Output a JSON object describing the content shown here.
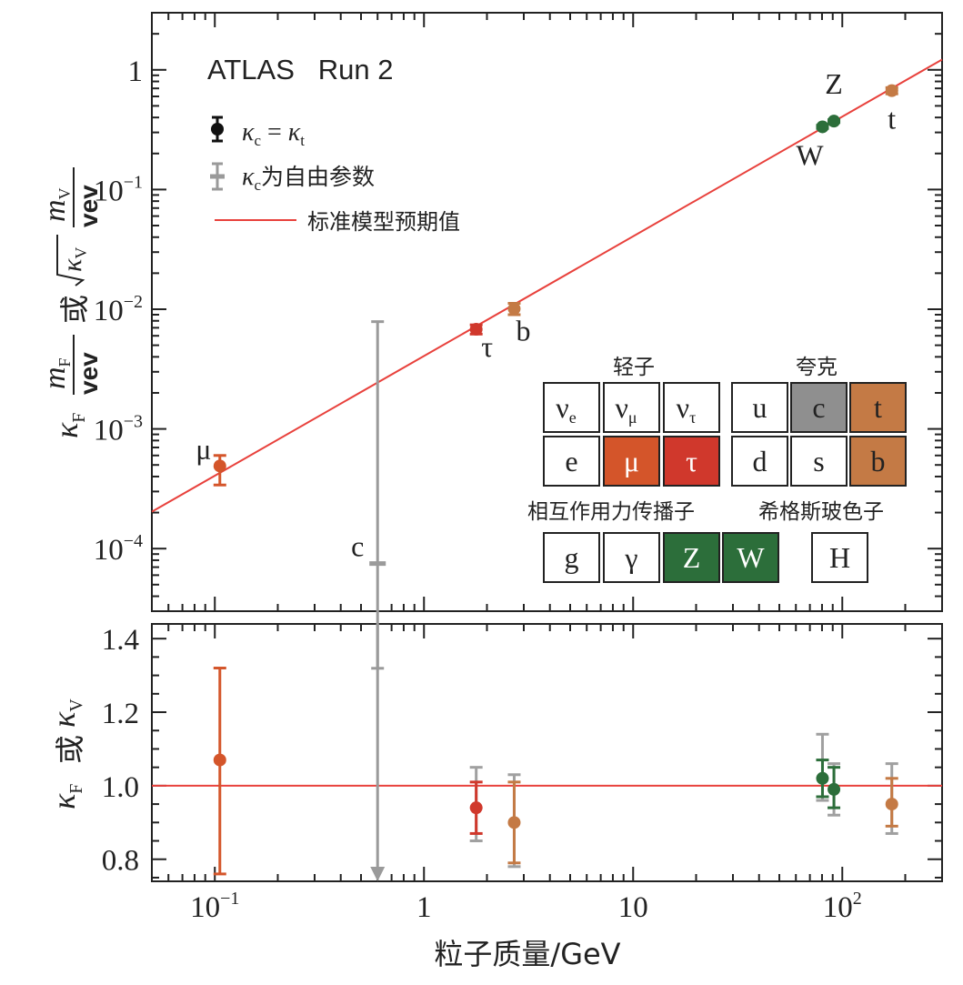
{
  "chart_data": [
    {
      "type": "scatter",
      "panel": "top",
      "x_scale": "log",
      "y_scale": "log",
      "xlim": [
        0.05,
        300
      ],
      "ylim": [
        3e-05,
        3
      ],
      "ylabel_parts": {
        "kF": "κ",
        "kF_sub": "F",
        "mF_num": "m",
        "mF_sub": "F",
        "mF_den": "vev",
        "or": "或",
        "sqrt_kv": "κ",
        "sqrt_kv_sub": "V",
        "mV_num": "m",
        "mV_sub": "V",
        "mV_den": "vev"
      },
      "y_tick_labels": [
        {
          "value": 1,
          "base": "1",
          "exp": ""
        },
        {
          "value": 0.1,
          "base": "10",
          "exp": "−1"
        },
        {
          "value": 0.01,
          "base": "10",
          "exp": "−2"
        },
        {
          "value": 0.001,
          "base": "10",
          "exp": "−3"
        },
        {
          "value": 0.0001,
          "base": "10",
          "exp": "−4"
        }
      ],
      "annotation_title": "ATLAS   Run 2",
      "legend": [
        {
          "marker": "black-dot",
          "text_parts": {
            "k1": "κ",
            "s1": "c",
            "eq": " = ",
            "k2": "κ",
            "s2": "t"
          }
        },
        {
          "marker": "gray-cross",
          "text_parts": {
            "k": "κ",
            "s": "c",
            "rest": "为自由参数"
          }
        },
        {
          "marker": "red-line",
          "text": "标准模型预期值"
        }
      ],
      "sm_line": {
        "color": "#e8413c",
        "description": "y = x / 246"
      },
      "points": [
        {
          "label": "μ",
          "x": 0.1057,
          "y": 0.00049,
          "err_low": 0.00015,
          "err_high": 0.00011,
          "color": "#d4552a"
        },
        {
          "label": "c",
          "x": 0.6,
          "y": 7.5e-05,
          "err_low": 6.5e-05,
          "err_high": 0.0078,
          "color": "#9a9a9a"
        },
        {
          "label": "τ",
          "x": 1.777,
          "y": 0.0068,
          "err_low": 0.0006,
          "err_high": 0.0006,
          "color": "#d0382c"
        },
        {
          "label": "b",
          "x": 2.7,
          "y": 0.0101,
          "err_low": 0.0011,
          "err_high": 0.0011,
          "color": "#c47a45"
        },
        {
          "label": "W",
          "x": 80.4,
          "y": 0.334,
          "err_low": 0.01,
          "err_high": 0.01,
          "color": "#2c6e3a"
        },
        {
          "label": "Z",
          "x": 91.2,
          "y": 0.373,
          "err_low": 0.01,
          "err_high": 0.01,
          "color": "#2c6e3a"
        },
        {
          "label": "t",
          "x": 172.5,
          "y": 0.67,
          "err_low": 0.04,
          "err_high": 0.04,
          "color": "#c47a45"
        }
      ],
      "particle_table": {
        "leptons_title": "轻子",
        "quarks_title": "夸克",
        "bosons_title": "相互作用力传播子",
        "higgs_title": "希格斯玻色子",
        "rows": [
          [
            {
              "base": "ν",
              "sub": "e",
              "fill": "#ffffff",
              "text_color": "#222222"
            },
            {
              "base": "ν",
              "sub": "μ",
              "fill": "#ffffff",
              "text_color": "#222222"
            },
            {
              "base": "ν",
              "sub": "τ",
              "fill": "#ffffff",
              "text_color": "#222222"
            },
            {
              "base": "u",
              "sub": "",
              "fill": "#ffffff",
              "text_color": "#222222"
            },
            {
              "base": "c",
              "sub": "",
              "fill": "#8f8f8f",
              "text_color": "#222222"
            },
            {
              "base": "t",
              "sub": "",
              "fill": "#c47a45",
              "text_color": "#222222"
            }
          ],
          [
            {
              "base": "e",
              "sub": "",
              "fill": "#ffffff",
              "text_color": "#222222"
            },
            {
              "base": "μ",
              "sub": "",
              "fill": "#d4552a",
              "text_color": "#ffffff"
            },
            {
              "base": "τ",
              "sub": "",
              "fill": "#d0382c",
              "text_color": "#ffffff"
            },
            {
              "base": "d",
              "sub": "",
              "fill": "#ffffff",
              "text_color": "#222222"
            },
            {
              "base": "s",
              "sub": "",
              "fill": "#ffffff",
              "text_color": "#222222"
            },
            {
              "base": "b",
              "sub": "",
              "fill": "#c47a45",
              "text_color": "#222222"
            }
          ]
        ],
        "bosons": [
          {
            "base": "g",
            "fill": "#ffffff",
            "text_color": "#222222"
          },
          {
            "base": "γ",
            "fill": "#ffffff",
            "text_color": "#222222"
          },
          {
            "base": "Z",
            "fill": "#2c6e3a",
            "text_color": "#ffffff"
          },
          {
            "base": "W",
            "fill": "#2c6e3a",
            "text_color": "#ffffff"
          }
        ],
        "higgs": {
          "base": "H",
          "fill": "#ffffff",
          "text_color": "#222222"
        }
      }
    },
    {
      "type": "scatter",
      "panel": "bottom",
      "x_scale": "log",
      "xlim": [
        0.05,
        300
      ],
      "ylim": [
        0.74,
        1.44
      ],
      "ylabel_parts": {
        "kF": "κ",
        "kF_sub": "F",
        "or": "或",
        "kV": "κ",
        "kV_sub": "V"
      },
      "y_ticks": [
        "0.8",
        "1.0",
        "1.2",
        "1.4"
      ],
      "reference_line": {
        "y": 1.0,
        "color": "#e8413c"
      },
      "points": [
        {
          "label": "μ",
          "x": 0.1057,
          "y": 1.07,
          "err_low": 0.31,
          "err_high": 0.25,
          "color": "#d4552a"
        },
        {
          "label": "c",
          "x": 0.6,
          "y": 1.44,
          "down_arrow_to": 0.74,
          "color": "#9a9a9a"
        },
        {
          "label": "τ",
          "x": 1.777,
          "y": 0.94,
          "err_low": 0.07,
          "err_high": 0.07,
          "gray_low": 0.09,
          "gray_high": 0.11,
          "color": "#d0382c"
        },
        {
          "label": "b",
          "x": 2.7,
          "y": 0.9,
          "err_low": 0.11,
          "err_high": 0.11,
          "gray_low": 0.12,
          "gray_high": 0.13,
          "color": "#c47a45"
        },
        {
          "label": "W",
          "x": 80.4,
          "y": 1.02,
          "err_low": 0.05,
          "err_high": 0.05,
          "gray_low": 0.06,
          "gray_high": 0.12,
          "color": "#2c6e3a"
        },
        {
          "label": "Z",
          "x": 91.2,
          "y": 0.99,
          "err_low": 0.05,
          "err_high": 0.06,
          "gray_low": 0.07,
          "gray_high": 0.07,
          "color": "#2c6e3a"
        },
        {
          "label": "t",
          "x": 172.5,
          "y": 0.95,
          "err_low": 0.06,
          "err_high": 0.07,
          "gray_low": 0.08,
          "gray_high": 0.11,
          "color": "#c47a45"
        }
      ]
    }
  ],
  "x_axis": {
    "label": "粒子质量/GeV",
    "tick_labels": [
      {
        "value": 0.1,
        "base": "10",
        "exp": "−1"
      },
      {
        "value": 1,
        "base": "1",
        "exp": ""
      },
      {
        "value": 10,
        "base": "10",
        "exp": ""
      },
      {
        "value": 100,
        "base": "10",
        "exp": "2"
      }
    ]
  }
}
